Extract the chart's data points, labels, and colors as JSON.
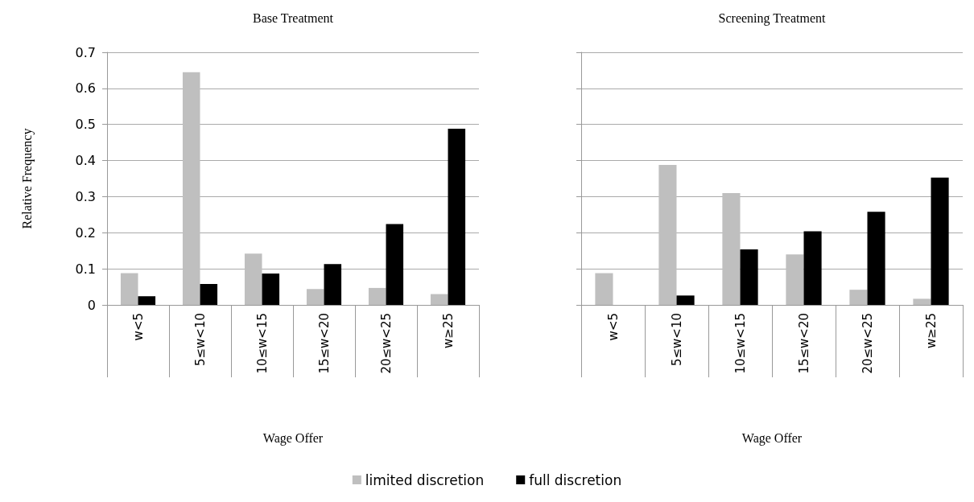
{
  "chart_data": [
    {
      "type": "bar",
      "title": "Base Treatment",
      "xlabel": "Wage Offer",
      "ylabel": "Relative Frequency",
      "categories": [
        "w<5",
        "5≤w<10",
        "10≤w<15",
        "15≤w<20",
        "20≤w<25",
        "w≥25"
      ],
      "series": [
        {
          "name": "limited discretion",
          "color": "#bfbfbf",
          "values": [
            0.088,
            0.645,
            0.142,
            0.044,
            0.047,
            0.03
          ]
        },
        {
          "name": "full discretion",
          "color": "#000000",
          "values": [
            0.024,
            0.058,
            0.087,
            0.113,
            0.224,
            0.488
          ]
        }
      ],
      "ylim": [
        0,
        0.7
      ],
      "yticks": [
        0,
        0.1,
        0.2,
        0.3,
        0.4,
        0.5,
        0.6,
        0.7
      ],
      "grid": "y",
      "legend": "bottom"
    },
    {
      "type": "bar",
      "title": "Screening Treatment",
      "xlabel": "Wage Offer",
      "categories": [
        "w<5",
        "5≤w<10",
        "10≤w<15",
        "15≤w<20",
        "20≤w<25",
        "w≥25"
      ],
      "series": [
        {
          "color": "#bfbfbf",
          "values": [
            0.088,
            0.388,
            0.31,
            0.14,
            0.042,
            0.017
          ]
        },
        {
          "color": "#000000",
          "values": [
            0,
            0.026,
            0.154,
            0.204,
            0.258,
            0.353
          ]
        }
      ],
      "ylim": [
        0,
        0.7
      ],
      "yticks": [
        0,
        0.1,
        0.2,
        0.3,
        0.4,
        0.5,
        0.6,
        0.7
      ],
      "grid": "y",
      "tick_labels": "x"
    }
  ]
}
